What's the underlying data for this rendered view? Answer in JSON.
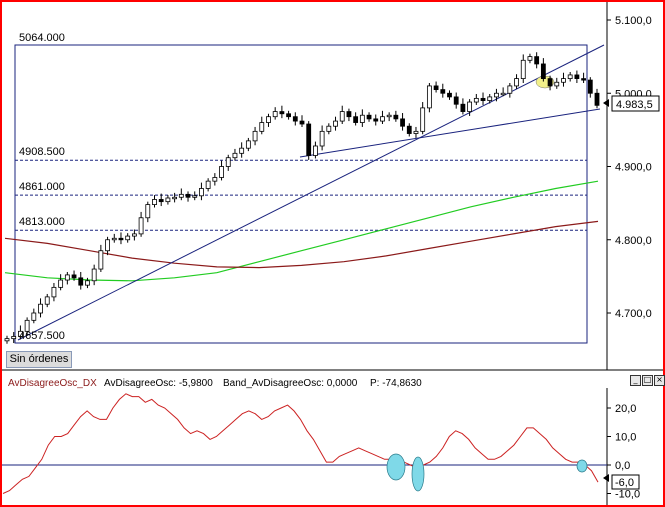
{
  "colors": {
    "border": "#ff0000",
    "candle": "#000000",
    "trendline": "#1a237e",
    "level_line": "#1a237e",
    "ma_green": "#22cc22",
    "ma_brown": "#8b1a1a",
    "oscillator": "#cc2222",
    "ellipse_fill": "#7fd9e8",
    "highlight_yellow": "#f2f08a"
  },
  "main_panel": {
    "price_axis_labels": [
      "5.100,0",
      "5.000,0",
      "4.900,0",
      "4.800,0",
      "4.700,0"
    ],
    "current_price_label": "4.983,5",
    "level_labels": [
      "5064.000",
      "4908.500",
      "4861.000",
      "4813.000",
      "4657.500"
    ],
    "orders_button": "Sin órdenes"
  },
  "indicator_panel": {
    "header": {
      "name": "AvDisagreeOsc_DX",
      "osc_label": "AvDisagreeOsc: -5,9800",
      "band_label": "Band_AvDisagreeOsc: 0,0000",
      "p_label": "P: -74,8630"
    },
    "axis_labels": [
      "20,0",
      "10,0",
      "0,0",
      "-10,0"
    ],
    "current_value_label": "-6,0",
    "window_buttons": [
      "minimize-icon",
      "maximize-icon",
      "close-icon"
    ]
  },
  "chart_data": [
    {
      "type": "line",
      "title": "",
      "xlabel": "",
      "ylabel": "",
      "ylim": [
        4630,
        5125
      ],
      "grid": false,
      "series": [
        {
          "name": "",
          "kind": "close-price (candlesticks)",
          "values": [
            4665,
            4668,
            4675,
            4690,
            4700,
            4712,
            4722,
            4735,
            4745,
            4752,
            4748,
            4738,
            4744,
            4760,
            4785,
            4800,
            4802,
            4800,
            4805,
            4808,
            4830,
            4848,
            4855,
            4852,
            4857,
            4858,
            4862,
            4858,
            4860,
            4870,
            4880,
            4885,
            4900,
            4912,
            4918,
            4925,
            4935,
            4948,
            4960,
            4968,
            4975,
            4972,
            4968,
            4962,
            4958,
            4915,
            4928,
            4948,
            4955,
            4962,
            4975,
            4968,
            4960,
            4970,
            4965,
            4962,
            4968,
            4970,
            4965,
            4955,
            4945,
            4948,
            4980,
            5010,
            5005,
            5000,
            4995,
            4985,
            4975,
            4988,
            4993,
            4990,
            4995,
            5000,
            5000,
            5010,
            5020,
            5045,
            5050,
            5040,
            5020,
            5010,
            5015,
            5020,
            5025,
            5020,
            5018,
            5000,
            4983.5
          ]
        },
        {
          "name": "",
          "kind": "moving-average (green)",
          "values": [
            4755,
            4748,
            4745,
            4744,
            4748,
            4755,
            4770,
            4785,
            4800,
            4815,
            4830,
            4845,
            4858,
            4870,
            4880
          ]
        },
        {
          "name": "",
          "kind": "moving-average (brown)",
          "values": [
            4802,
            4795,
            4785,
            4775,
            4768,
            4763,
            4762,
            4765,
            4770,
            4778,
            4788,
            4798,
            4808,
            4818,
            4825
          ]
        }
      ],
      "levels": [
        5064.0,
        4908.5,
        4861.0,
        4813.0,
        4657.5
      ],
      "last_value": 4983.5
    },
    {
      "type": "line",
      "title": "",
      "xlabel": "",
      "ylabel": "",
      "ylim": [
        -14,
        27
      ],
      "grid": false,
      "series": [
        {
          "name": "AvDisagreeOsc_DX",
          "values": [
            -10,
            -9,
            -7,
            -5,
            -4,
            -1,
            2,
            7,
            10,
            10,
            11,
            14,
            17,
            19,
            17,
            16,
            16,
            20,
            23,
            25,
            24,
            24,
            22,
            23,
            21,
            20,
            18,
            16,
            13,
            11,
            12,
            11,
            9,
            10,
            12,
            14,
            16,
            18,
            19,
            18,
            16,
            17,
            19,
            20,
            21,
            19,
            16,
            12,
            9,
            5,
            1,
            1,
            3,
            4,
            5,
            6,
            5,
            4,
            3,
            2,
            2,
            1,
            1,
            0,
            -1,
            0,
            1,
            3,
            6,
            10,
            12,
            11,
            9,
            6,
            4,
            2,
            2,
            3,
            5,
            7,
            10,
            13,
            13,
            11,
            9,
            6,
            4,
            2,
            1,
            1,
            0,
            -2,
            -6
          ]
        },
        {
          "name": "Band_AvDisagreeOsc",
          "values": [
            0
          ]
        }
      ],
      "last_value": -6.0,
      "last_values_header": {
        "AvDisagreeOsc": -5.98,
        "Band_AvDisagreeOsc": 0.0,
        "P": -74.863
      }
    }
  ]
}
